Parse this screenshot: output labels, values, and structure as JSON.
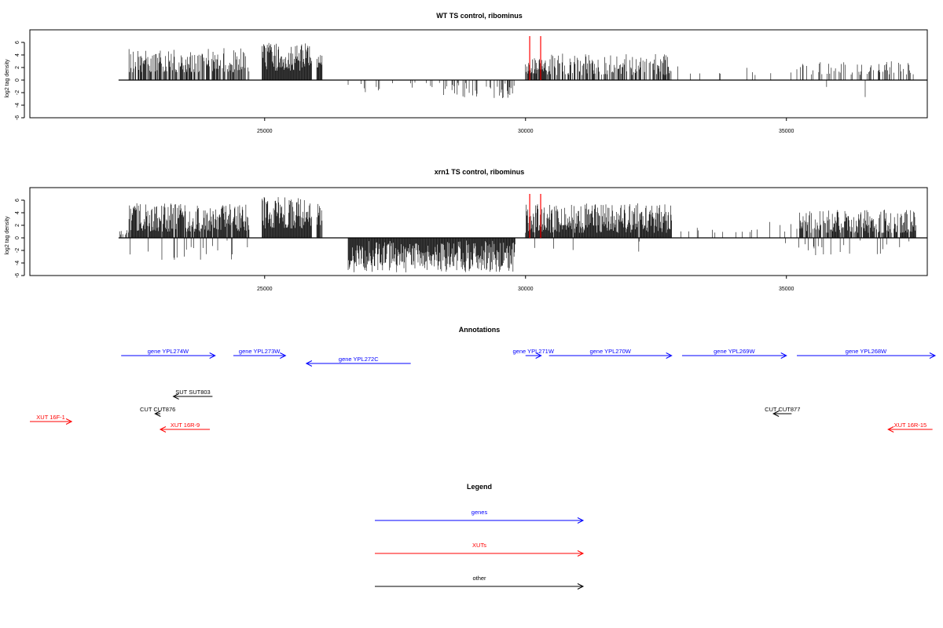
{
  "chart_data": [
    {
      "type": "bar",
      "title": "WT TS control, ribominus",
      "ylabel": "log2 tag density",
      "xlim": [
        20500,
        37700
      ],
      "ylim": [
        -6,
        8
      ],
      "xticks": [
        25000,
        30000,
        35000
      ],
      "yticks": [
        -6,
        -4,
        -2,
        0,
        2,
        4,
        6
      ],
      "data_range": [
        22200,
        37700
      ],
      "grid": false,
      "segments": [
        {
          "from": 22400,
          "to": 24700,
          "density": 0.65,
          "pos_min": 1.2,
          "pos_max": 5.2,
          "neg_frac": 0.0,
          "neg_max": 0
        },
        {
          "from": 24950,
          "to": 25900,
          "density": 1.0,
          "pos_min": 1.5,
          "pos_max": 6.0,
          "neg_frac": 0.0,
          "neg_max": 0
        },
        {
          "from": 26000,
          "to": 26100,
          "density": 0.9,
          "pos_min": 2.0,
          "pos_max": 4.0,
          "neg_frac": 0.0,
          "neg_max": 0
        },
        {
          "from": 26600,
          "to": 27600,
          "density": 0.1,
          "pos_min": 0,
          "pos_max": 0,
          "neg_frac": 1.0,
          "neg_max": 2.4
        },
        {
          "from": 27800,
          "to": 29800,
          "density": 0.3,
          "pos_min": 0,
          "pos_max": 0,
          "neg_frac": 1.0,
          "neg_max": 3.0
        },
        {
          "from": 30000,
          "to": 30400,
          "density": 0.9,
          "pos_min": 1.0,
          "pos_max": 3.6,
          "neg_frac": 0.0,
          "neg_max": 0
        },
        {
          "from": 30400,
          "to": 32800,
          "density": 0.55,
          "pos_min": 0.8,
          "pos_max": 4.2,
          "neg_frac": 0.0,
          "neg_max": 0
        },
        {
          "from": 32900,
          "to": 35200,
          "density": 0.05,
          "pos_min": 0.8,
          "pos_max": 2.2,
          "neg_frac": 0.0,
          "neg_max": 0
        },
        {
          "from": 35200,
          "to": 37500,
          "density": 0.3,
          "pos_min": 0.8,
          "pos_max": 3.0,
          "neg_frac": 0.05,
          "neg_max": 2.8
        }
      ],
      "highlights": [
        {
          "x": 30080,
          "value": 7.0,
          "color": "#ff0000"
        },
        {
          "x": 30290,
          "value": 7.0,
          "color": "#ff0000"
        }
      ]
    },
    {
      "type": "bar",
      "title": "xrn1 TS control, ribominus",
      "ylabel": "log2 tag density",
      "xlim": [
        20500,
        37700
      ],
      "ylim": [
        -6,
        8
      ],
      "xticks": [
        25000,
        30000,
        35000
      ],
      "yticks": [
        -6,
        -4,
        -2,
        0,
        2,
        4,
        6
      ],
      "data_range": [
        22200,
        37700
      ],
      "grid": false,
      "segments": [
        {
          "from": 22200,
          "to": 22400,
          "density": 0.4,
          "pos_min": 0.5,
          "pos_max": 1.5,
          "neg_frac": 0.0,
          "neg_max": 0
        },
        {
          "from": 22400,
          "to": 24700,
          "density": 1.0,
          "pos_min": 1.0,
          "pos_max": 5.5,
          "neg_frac": 0.1,
          "neg_max": 3.5
        },
        {
          "from": 24950,
          "to": 25900,
          "density": 1.0,
          "pos_min": 1.5,
          "pos_max": 6.5,
          "neg_frac": 0.0,
          "neg_max": 0
        },
        {
          "from": 26000,
          "to": 26100,
          "density": 0.9,
          "pos_min": 2.0,
          "pos_max": 5.5,
          "neg_frac": 0.0,
          "neg_max": 0
        },
        {
          "from": 26600,
          "to": 29800,
          "density": 1.0,
          "pos_min": 0,
          "pos_max": 0,
          "neg_frac": 1.0,
          "neg_max": 5.5
        },
        {
          "from": 30000,
          "to": 32800,
          "density": 1.0,
          "pos_min": 0.8,
          "pos_max": 5.5,
          "neg_frac": 0.02,
          "neg_max": 2.6
        },
        {
          "from": 32900,
          "to": 35200,
          "density": 0.08,
          "pos_min": 0.8,
          "pos_max": 2.6,
          "neg_frac": 0.08,
          "neg_max": 2.6
        },
        {
          "from": 35200,
          "to": 37500,
          "density": 0.85,
          "pos_min": 0.8,
          "pos_max": 4.5,
          "neg_frac": 0.1,
          "neg_max": 2.8
        }
      ],
      "highlights": [
        {
          "x": 30080,
          "value": 7.0,
          "color": "#ff0000"
        },
        {
          "x": 30290,
          "value": 7.0,
          "color": "#ff0000"
        }
      ]
    }
  ],
  "annotations_title": "Annotations",
  "annotations": [
    {
      "label": "gene YPL274W",
      "from": 22250,
      "to": 24050,
      "row": 0,
      "color": "#0000ff"
    },
    {
      "label": "gene YPL273W",
      "from": 24400,
      "to": 25400,
      "row": 0,
      "color": "#0000ff"
    },
    {
      "label": "gene YPL272C",
      "from": 27800,
      "to": 25800,
      "row": 1,
      "color": "#0000ff"
    },
    {
      "label": "gene YPL271W",
      "from": 30000,
      "to": 30300,
      "row": 0,
      "color": "#0000ff"
    },
    {
      "label": "gene YPL270W",
      "from": 30450,
      "to": 32800,
      "row": 0,
      "color": "#0000ff"
    },
    {
      "label": "gene YPL269W",
      "from": 33000,
      "to": 35000,
      "row": 0,
      "color": "#0000ff"
    },
    {
      "label": "gene YPL268W",
      "from": 35200,
      "to": 37850,
      "row": 0,
      "color": "#0000ff"
    },
    {
      "label": "SUT SUT803",
      "from": 24000,
      "to": 23250,
      "row": 3,
      "color": "#000000"
    },
    {
      "label": "CUT CUT876",
      "from": 23000,
      "to": 22900,
      "row": 4,
      "color": "#000000"
    },
    {
      "label": "CUT CUT877",
      "from": 35100,
      "to": 34750,
      "row": 4,
      "color": "#000000"
    },
    {
      "label": "XUT 16F-1",
      "from": 20500,
      "to": 21300,
      "row": 5,
      "color": "#ff0000"
    },
    {
      "label": "XUT 16R-9",
      "from": 23950,
      "to": 23000,
      "row": 6,
      "color": "#ff0000"
    },
    {
      "label": "XUT 16R-15",
      "from": 37800,
      "to": 36950,
      "row": 6,
      "color": "#ff0000"
    }
  ],
  "legend_title": "Legend",
  "legend": [
    {
      "label": "genes",
      "color": "#0000ff"
    },
    {
      "label": "XUTs",
      "color": "#ff0000"
    },
    {
      "label": "other",
      "color": "#000000"
    }
  ]
}
